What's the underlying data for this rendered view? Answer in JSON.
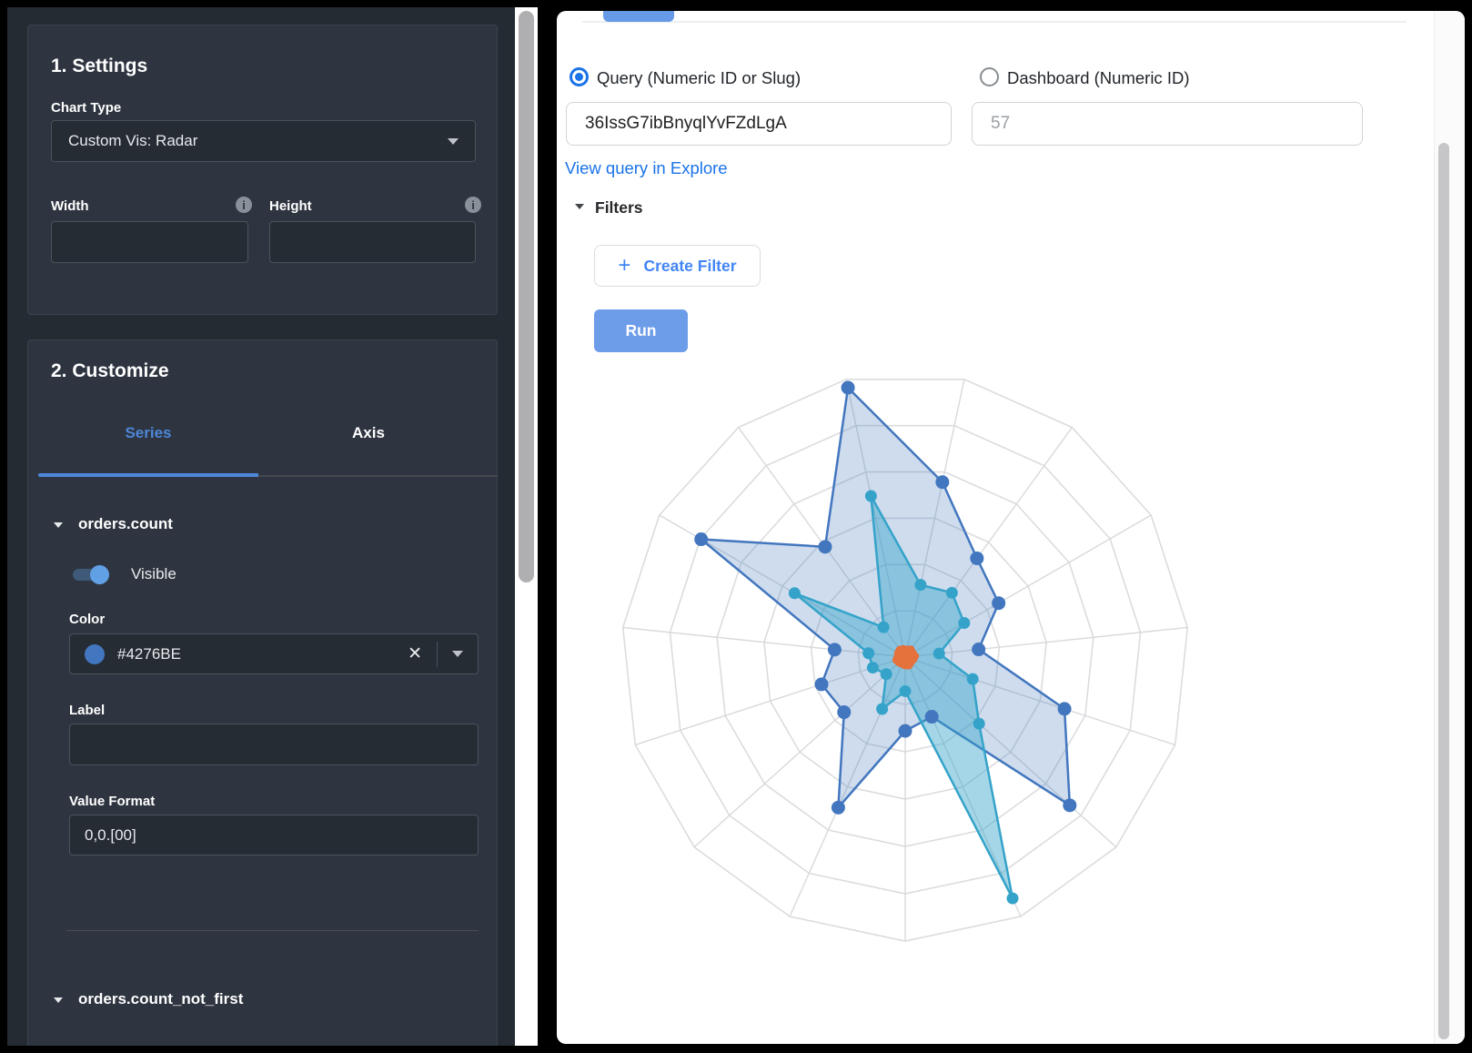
{
  "sidebar": {
    "settings": {
      "title": "1. Settings",
      "chart_type_label": "Chart Type",
      "chart_type_value": "Custom Vis: Radar",
      "width_label": "Width",
      "height_label": "Height",
      "width_value": "",
      "height_value": ""
    },
    "customize": {
      "title": "2. Customize",
      "tabs": [
        {
          "label": "Series"
        },
        {
          "label": "Axis"
        }
      ],
      "series1": {
        "name": "orders.count",
        "visible_label": "Visible",
        "visible_state": "on",
        "color_label": "Color",
        "color_value": "#4276BE",
        "label_label": "Label",
        "label_value": "",
        "value_format_label": "Value Format",
        "value_format_value": "0,0.[00]"
      },
      "series2": {
        "name": "orders.count_not_first"
      }
    }
  },
  "main": {
    "query_radio_label": "Query (Numeric ID or Slug)",
    "dashboard_radio_label": "Dashboard (Numeric ID)",
    "query_input_value": "36IssG7ibBnyqlYvFZdLgA",
    "dashboard_input_placeholder": "57",
    "explore_link": "View query in Explore",
    "filters_label": "Filters",
    "create_filter_label": "Create Filter",
    "plus_icon": "+",
    "run_label": "Run"
  },
  "chart_data": {
    "type": "radar",
    "title": "",
    "axes_count": 15,
    "start_angle_deg": 102,
    "angle_step_deg": -24,
    "rings": 6,
    "grid_shape": "polygon",
    "ring_color": "#dbdcdf",
    "radial_color": "#d7d9db",
    "value_unit": "fraction_of_max_radius",
    "series": [
      {
        "name": "orders.count",
        "color": "#4276BE",
        "fill": "rgba(66,118,190,0.26)",
        "stroke_width": 2.5,
        "point_radius": 7.5,
        "values": [
          0.97,
          0.63,
          0.43,
          0.38,
          0.26,
          0.59,
          0.78,
          0.23,
          0.26,
          0.58,
          0.29,
          0.31,
          0.25,
          0.83,
          0.48
        ]
      },
      {
        "name": "orders.count_not_first",
        "color": "#35a3c9",
        "fill": "rgba(53,163,201,0.45)",
        "stroke_width": 2.5,
        "point_radius": 6.5,
        "values": [
          0.58,
          0.26,
          0.28,
          0.24,
          0.12,
          0.25,
          0.35,
          0.93,
          0.12,
          0.2,
          0.09,
          0.12,
          0.13,
          0.45,
          0.13
        ]
      },
      {
        "name": "unlabeled",
        "color": "#e5713c",
        "fill": "#e5713c",
        "stroke_width": 8,
        "point_radius": 4,
        "values": [
          0.03,
          0.027,
          0.034,
          0.03,
          0.036,
          0.03,
          0.027,
          0.033,
          0.03,
          0.027,
          0.03,
          0.034,
          0.027,
          0.03,
          0.033
        ]
      }
    ]
  }
}
